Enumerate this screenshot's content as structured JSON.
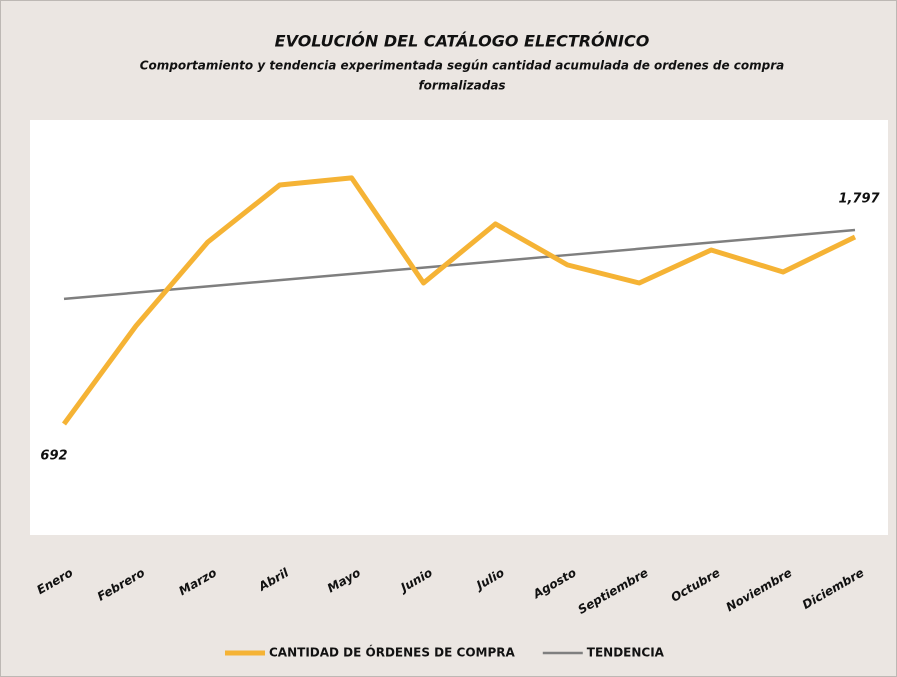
{
  "chart_data": {
    "type": "line",
    "title": "EVOLUCIÓN DEL CATÁLOGO  ELECTRÓNICO",
    "subtitle": [
      "Comportamiento y tendencia experimentada según cantidad acumulada de ordenes de compra",
      "formalizadas"
    ],
    "categories": [
      "Enero",
      "Febrero",
      "Marzo",
      "Abril",
      "Mayo",
      "Junio",
      "Julio",
      "Agosto",
      "Septiembre",
      "Octubre",
      "Noviembre",
      "Diciembre"
    ],
    "series": [
      {
        "name": "CANTIDAD DE ÓRDENES DE COMPRA",
        "color": "#f5b335",
        "values": [
          692,
          1271,
          1767,
          2104,
          2146,
          1525,
          1874,
          1632,
          1525,
          1720,
          1590,
          1797
        ],
        "value_labels": [
          "692",
          null,
          null,
          null,
          null,
          null,
          null,
          null,
          null,
          null,
          null,
          "1,797"
        ]
      },
      {
        "name": "TENDENCIA",
        "color": "#7f7f7f",
        "values": [
          1431,
          1468,
          1505,
          1542,
          1579,
          1616,
          1653,
          1690,
          1727,
          1764,
          1801,
          1838
        ]
      }
    ],
    "ylim": [
      36,
      2488
    ],
    "legend": "bottom"
  }
}
